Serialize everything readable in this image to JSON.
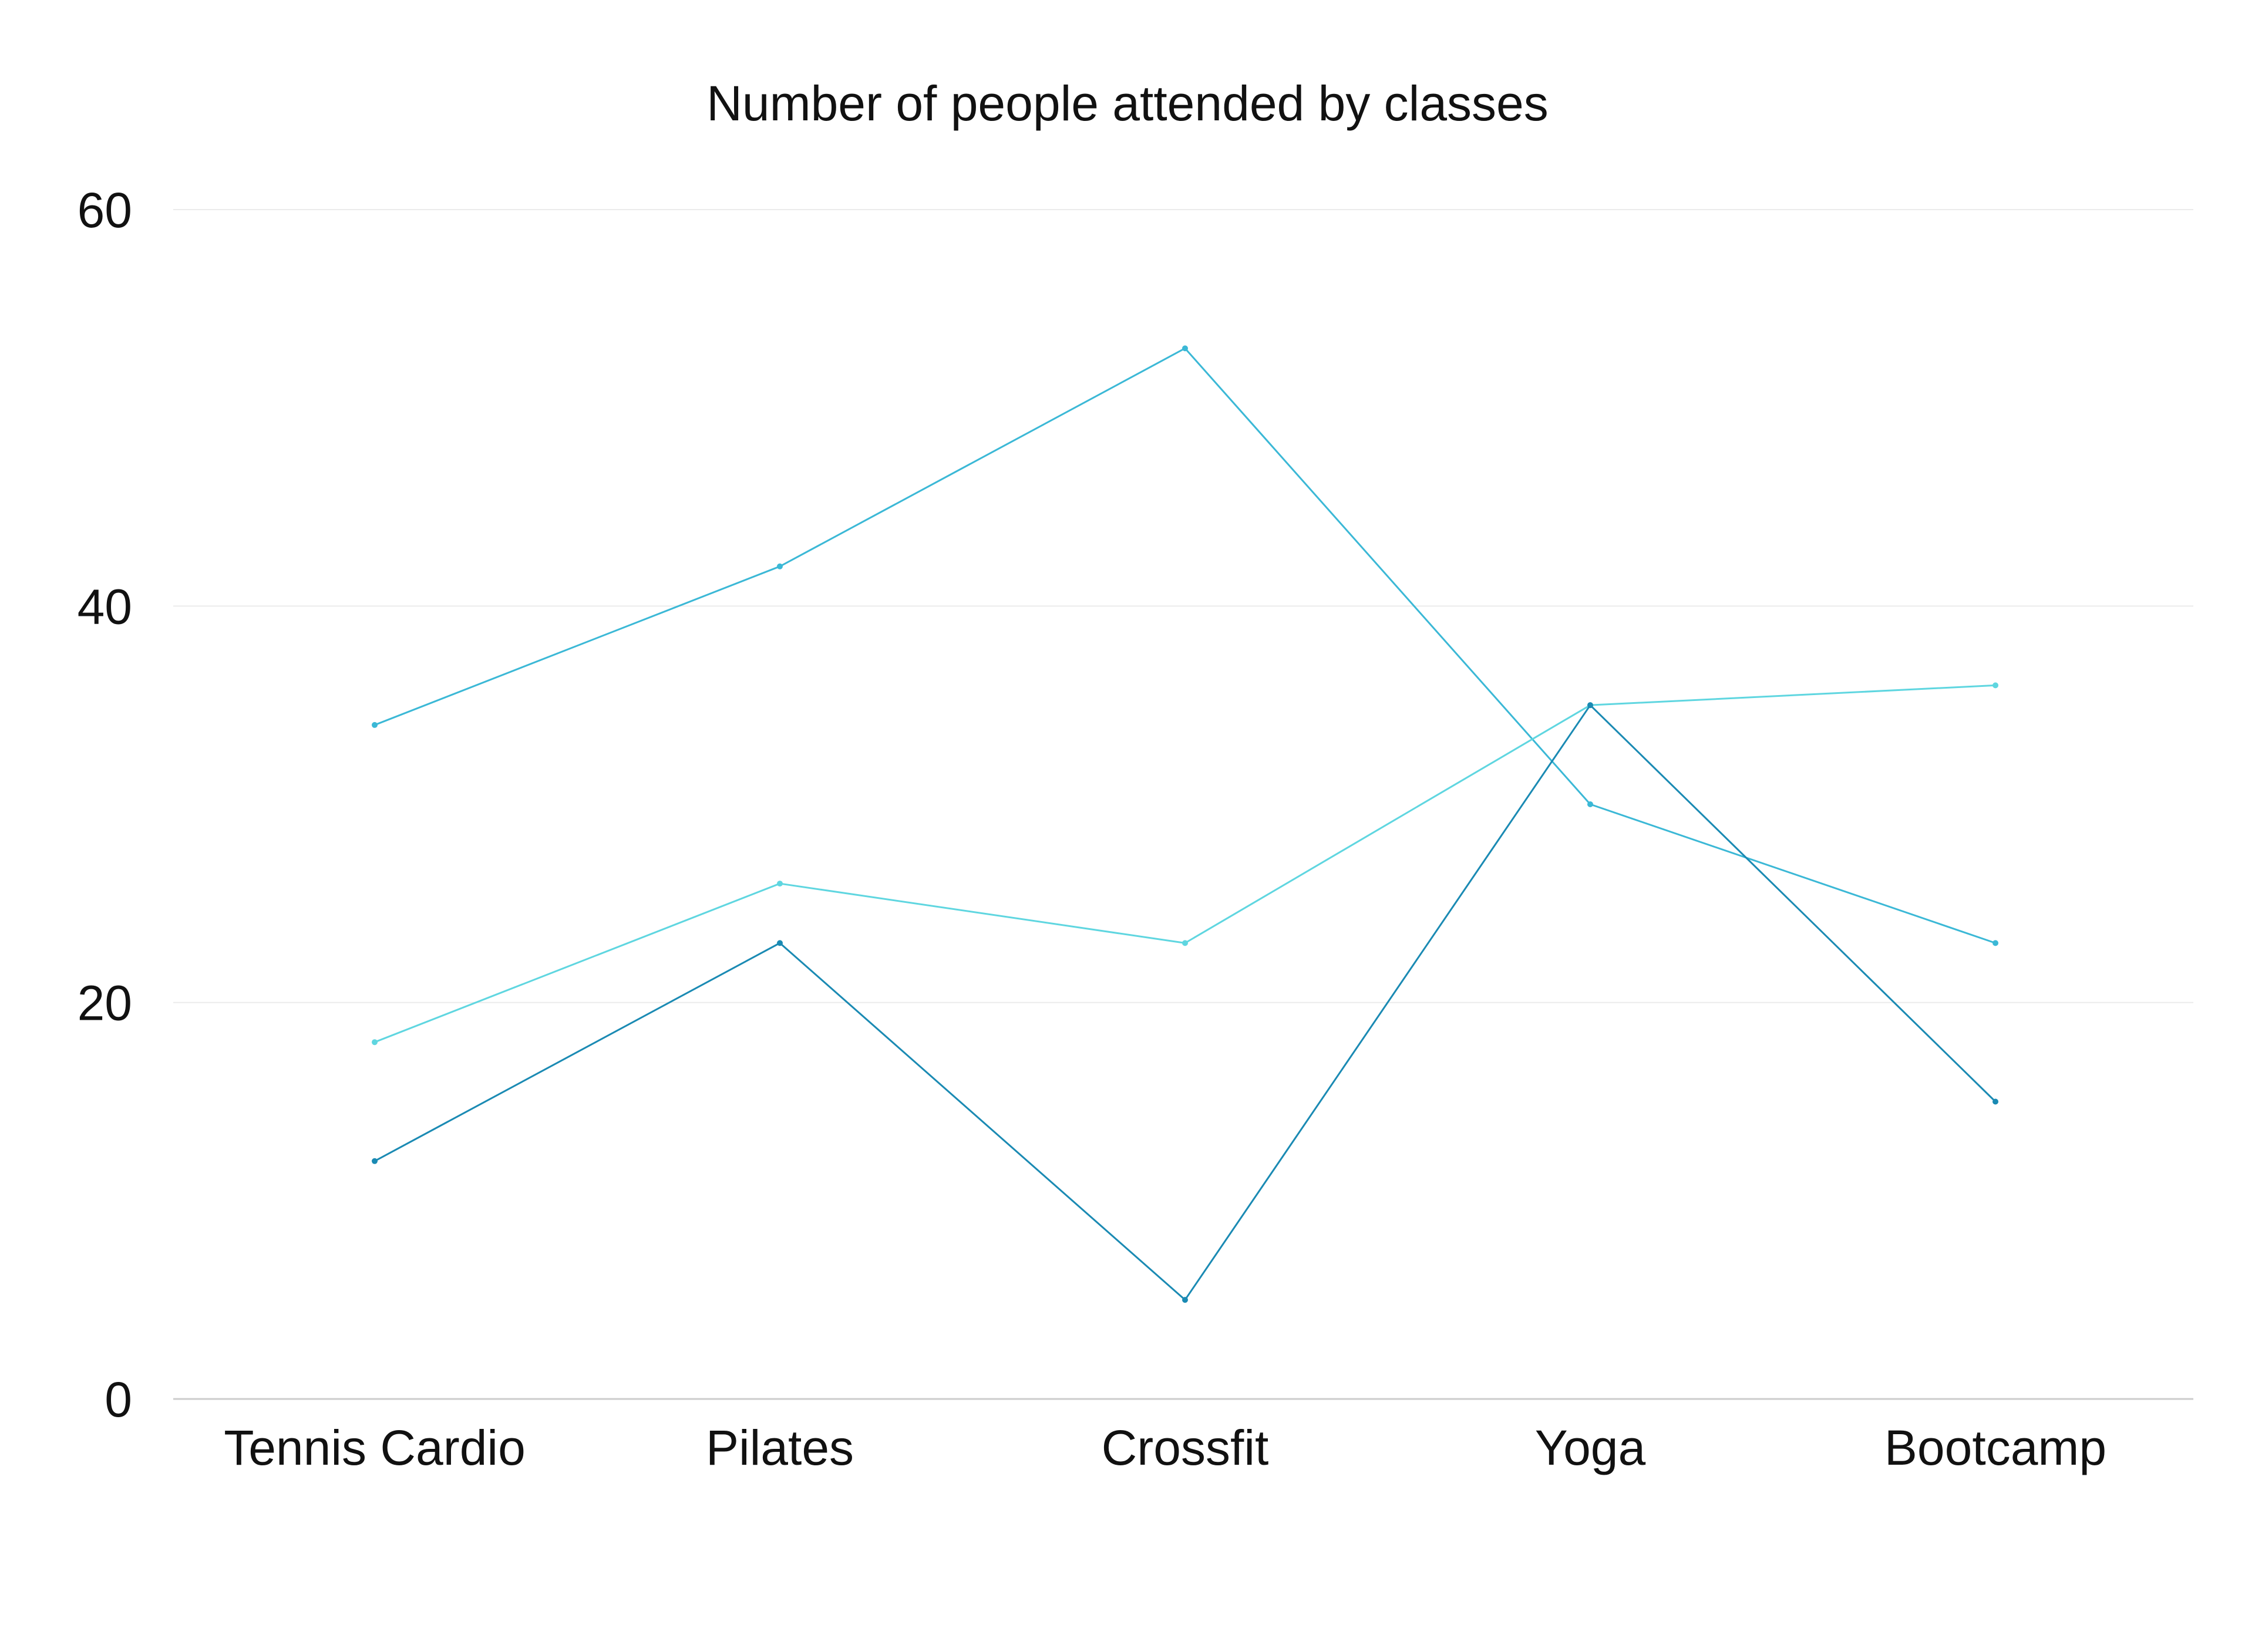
{
  "chart_data": {
    "type": "line",
    "title": "Number of people attended by classes",
    "xlabel": "",
    "ylabel": "",
    "categories": [
      "Tennis Cardio",
      "Pilates",
      "Crossfit",
      "Yoga",
      "Bootcamp"
    ],
    "ylim": [
      0,
      60
    ],
    "yticks": [
      0,
      20,
      40,
      60
    ],
    "grid": true,
    "legend": "none",
    "series": [
      {
        "values": [
          34,
          42,
          53,
          30,
          23
        ],
        "color": "#3bb8d6"
      },
      {
        "values": [
          18,
          26,
          23,
          35,
          36
        ],
        "color": "#5fd6e0"
      },
      {
        "values": [
          12,
          23,
          5,
          35,
          15
        ],
        "color": "#1a8ab3"
      }
    ],
    "colors": {
      "gridline": "#ebebeb",
      "baseline": "#cccccc",
      "text": "#111111"
    }
  }
}
